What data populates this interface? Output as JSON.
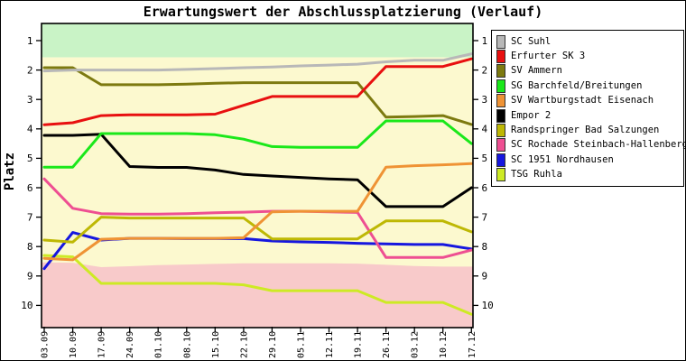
{
  "page": {
    "title": "Erwartungswert der Abschlussplatzierung (Verlauf)",
    "ylabel": "Platz"
  },
  "chart_data": {
    "type": "line",
    "title": "Erwartungswert der Abschlussplatzierung (Verlauf)",
    "xlabel": "",
    "ylabel": "Platz",
    "y_axis_inverted": true,
    "ylim": [
      0.4,
      10.75
    ],
    "grid": false,
    "legend_position": "right-overlay-box",
    "x_labels": [
      "03.09",
      "10.09",
      "17.09",
      "24.09",
      "01.10",
      "08.10",
      "15.10",
      "22.10",
      "29.10",
      "05.11",
      "12.11",
      "19.11",
      "26.11",
      "03.12",
      "10.12",
      "17.12"
    ],
    "y_ticks": [
      "1",
      "2",
      "3",
      "4",
      "5",
      "6",
      "7",
      "8",
      "9",
      "10"
    ],
    "zones": {
      "promotion_color": "#c9f3c6",
      "neutral_color": "#fcf9cf",
      "relegation_color": "#f8caca",
      "promotion_boundary": 1.57,
      "relegation_boundary": [
        8.54,
        8.55,
        8.7,
        8.67,
        8.63,
        8.61,
        8.59,
        8.57,
        8.57,
        8.57,
        8.57,
        8.58,
        8.62,
        8.66,
        8.68,
        8.68
      ]
    },
    "series": [
      {
        "name": "SC Suhl",
        "color": "#b8b8b8",
        "values": [
          2.03,
          2.0,
          2.0,
          2.0,
          2.0,
          1.98,
          1.95,
          1.92,
          1.9,
          1.86,
          1.83,
          1.8,
          1.72,
          1.67,
          1.67,
          1.45
        ]
      },
      {
        "name": "Erfurter SK 3",
        "color": "#e81010",
        "values": [
          3.86,
          3.79,
          3.55,
          3.52,
          3.52,
          3.52,
          3.5,
          3.2,
          2.9,
          2.9,
          2.9,
          2.9,
          1.88,
          1.88,
          1.88,
          1.62
        ]
      },
      {
        "name": "SV Ammern",
        "color": "#7d7a10",
        "values": [
          1.92,
          1.92,
          2.5,
          2.5,
          2.5,
          2.48,
          2.45,
          2.43,
          2.43,
          2.43,
          2.43,
          2.43,
          3.6,
          3.58,
          3.55,
          3.85
        ]
      },
      {
        "name": "SG Barchfeld/Breitungen",
        "color": "#1ae81a",
        "values": [
          5.3,
          5.3,
          4.16,
          4.16,
          4.16,
          4.16,
          4.2,
          4.35,
          4.6,
          4.63,
          4.63,
          4.63,
          3.73,
          3.73,
          3.73,
          4.5
        ]
      },
      {
        "name": "SV Wartburgstadt Eisenach",
        "color": "#ef9335",
        "values": [
          8.4,
          8.45,
          7.75,
          7.72,
          7.72,
          7.72,
          7.72,
          7.7,
          6.82,
          6.8,
          6.8,
          6.8,
          5.3,
          5.25,
          5.22,
          5.18
        ]
      },
      {
        "name": "Empor 2",
        "color": "#000000",
        "values": [
          4.22,
          4.22,
          4.18,
          5.28,
          5.31,
          5.31,
          5.4,
          5.55,
          5.6,
          5.65,
          5.7,
          5.73,
          6.64,
          6.64,
          6.64,
          6.0
        ]
      },
      {
        "name": "Randspringer Bad Salzungen",
        "color": "#beb804",
        "values": [
          7.78,
          7.85,
          7.0,
          7.03,
          7.03,
          7.03,
          7.03,
          7.03,
          7.74,
          7.74,
          7.74,
          7.74,
          7.13,
          7.13,
          7.13,
          7.5
        ]
      },
      {
        "name": "SC Rochade Steinbach-Hallenberg",
        "color": "#ee4f92",
        "values": [
          5.7,
          6.7,
          6.88,
          6.9,
          6.9,
          6.88,
          6.85,
          6.83,
          6.8,
          6.8,
          6.82,
          6.84,
          8.37,
          8.37,
          8.37,
          8.12
        ]
      },
      {
        "name": "SC 1951 Nordhausen",
        "color": "#1616df",
        "values": [
          8.75,
          7.52,
          7.78,
          7.72,
          7.72,
          7.73,
          7.73,
          7.73,
          7.81,
          7.84,
          7.86,
          7.89,
          7.91,
          7.93,
          7.93,
          8.08
        ]
      },
      {
        "name": "TSG Ruhla",
        "color": "#cdea24",
        "values": [
          8.3,
          8.35,
          9.25,
          9.25,
          9.25,
          9.25,
          9.25,
          9.3,
          9.5,
          9.5,
          9.5,
          9.5,
          9.9,
          9.9,
          9.9,
          10.3
        ]
      }
    ]
  }
}
